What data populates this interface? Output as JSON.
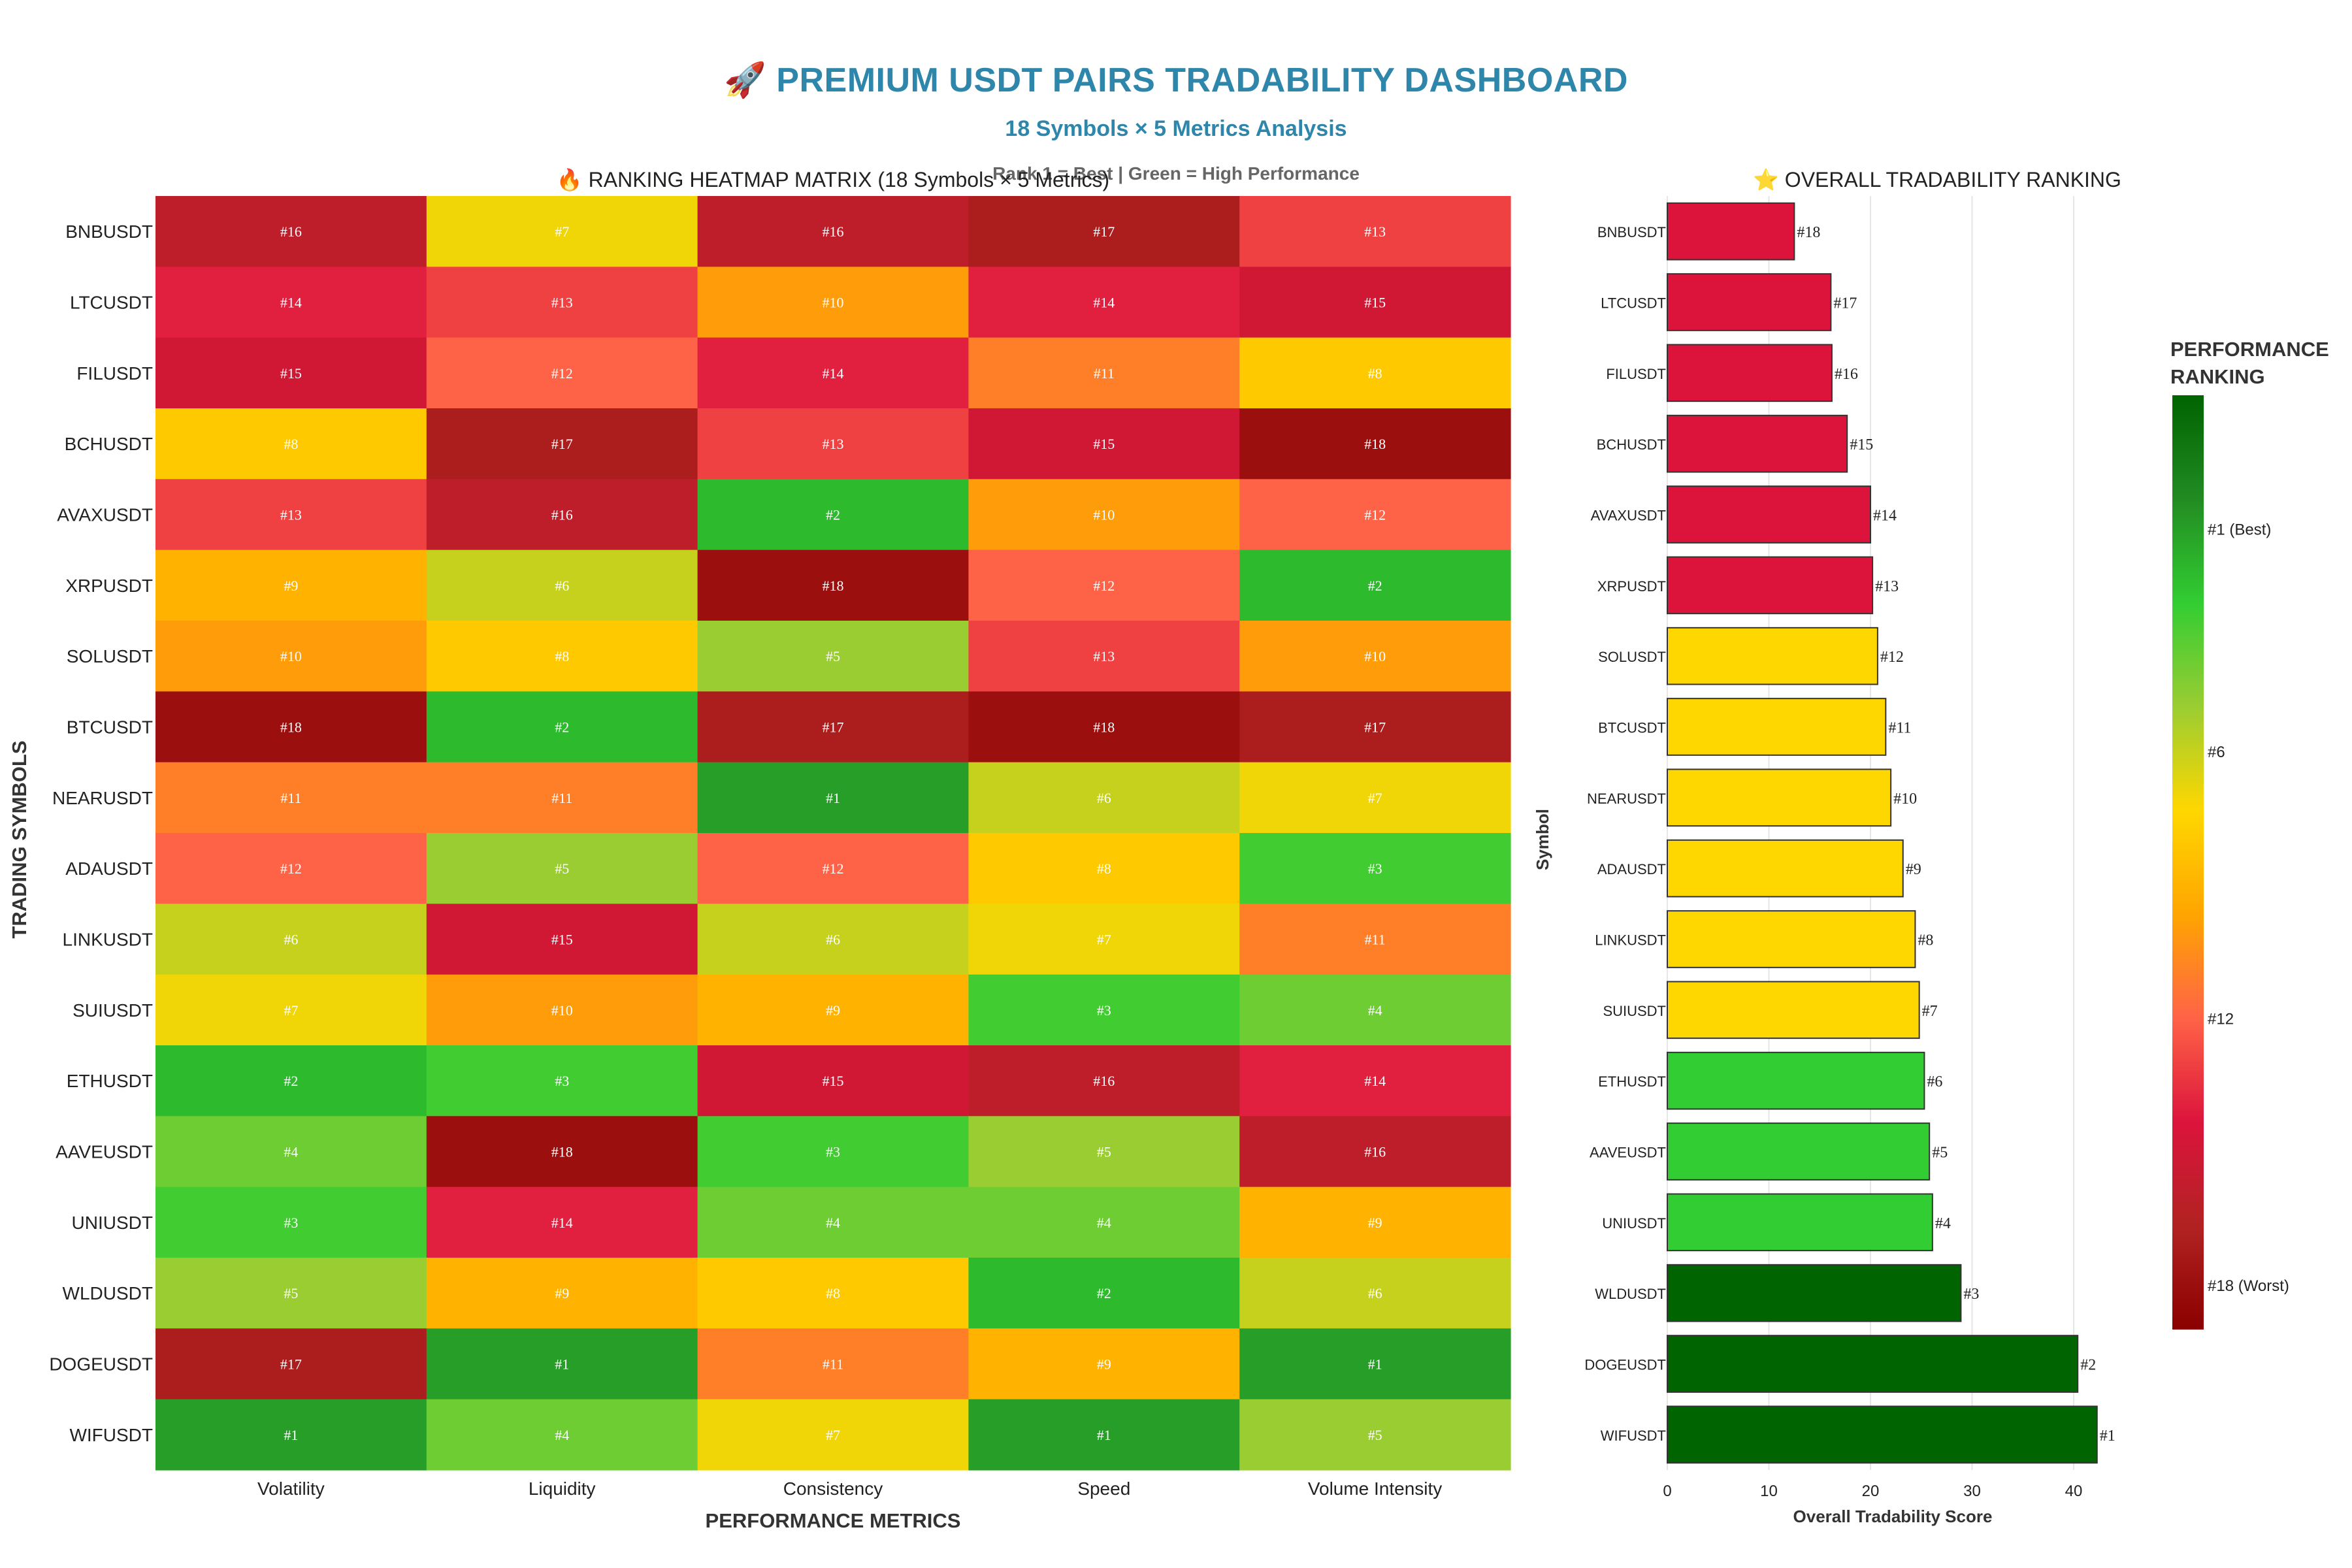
{
  "header": {
    "title": "🚀 PREMIUM USDT PAIRS TRADABILITY DASHBOARD",
    "subtitle": "18 Symbols × 5 Metrics Analysis",
    "note": "Rank 1 = Best | Green = High Performance"
  },
  "colors": {
    "title": "#2e86ab",
    "scale": [
      "#006400",
      "#228B22",
      "#32CD32",
      "#9ACD32",
      "#FFD700",
      "#FFA500",
      "#FF6347",
      "#DC143C",
      "#B22222",
      "#8B0000"
    ],
    "bar_green": "#006400",
    "bar_lightgreen": "#32CD32",
    "bar_yellow": "#FFD700",
    "bar_red": "#DC143C"
  },
  "chart_data": [
    {
      "type": "heatmap",
      "title": "🔥 RANKING HEATMAP MATRIX (18 Symbols × 5 Metrics)",
      "xlabel": "PERFORMANCE METRICS",
      "ylabel": "TRADING SYMBOLS",
      "x": [
        "Volatility",
        "Liquidity",
        "Consistency",
        "Speed",
        "Volume Intensity"
      ],
      "y": [
        "BNBUSDT",
        "LTCUSDT",
        "FILUSDT",
        "BCHUSDT",
        "AVAXUSDT",
        "XRPUSDT",
        "SOLUSDT",
        "BTCUSDT",
        "NEARUSDT",
        "ADAUSDT",
        "LINKUSDT",
        "SUIUSDT",
        "ETHUSDT",
        "AAVEUSDT",
        "UNIUSDT",
        "WLDUSDT",
        "DOGEUSDT",
        "WIFUSDT"
      ],
      "values": [
        [
          16,
          7,
          16,
          17,
          13
        ],
        [
          14,
          13,
          10,
          14,
          15
        ],
        [
          15,
          12,
          14,
          11,
          8
        ],
        [
          8,
          17,
          13,
          15,
          18
        ],
        [
          13,
          16,
          2,
          10,
          12
        ],
        [
          9,
          6,
          18,
          12,
          2
        ],
        [
          10,
          8,
          5,
          13,
          10
        ],
        [
          18,
          2,
          17,
          18,
          17
        ],
        [
          11,
          11,
          1,
          6,
          7
        ],
        [
          12,
          5,
          12,
          8,
          3
        ],
        [
          6,
          15,
          6,
          7,
          11
        ],
        [
          7,
          10,
          9,
          3,
          4
        ],
        [
          2,
          3,
          15,
          16,
          14
        ],
        [
          4,
          18,
          3,
          5,
          16
        ],
        [
          3,
          14,
          4,
          4,
          9
        ],
        [
          5,
          9,
          8,
          2,
          6
        ],
        [
          17,
          1,
          11,
          9,
          1
        ],
        [
          1,
          4,
          7,
          1,
          5
        ]
      ],
      "cell_label_prefix": "#",
      "colorbar": {
        "title_line1": "PERFORMANCE",
        "title_line2": "RANKING",
        "ticks": [
          {
            "value": 1,
            "label": "#1 (Best)"
          },
          {
            "value": 6,
            "label": "#6"
          },
          {
            "value": 12,
            "label": "#12"
          },
          {
            "value": 18,
            "label": "#18 (Worst)"
          }
        ],
        "range": [
          -2,
          19
        ]
      }
    },
    {
      "type": "bar",
      "orientation": "horizontal",
      "title": "⭐ OVERALL TRADABILITY RANKING",
      "xlabel": "Overall Tradability Score",
      "ylabel": "Symbol",
      "categories": [
        "BNBUSDT",
        "LTCUSDT",
        "FILUSDT",
        "BCHUSDT",
        "AVAXUSDT",
        "XRPUSDT",
        "SOLUSDT",
        "BTCUSDT",
        "NEARUSDT",
        "ADAUSDT",
        "LINKUSDT",
        "SUIUSDT",
        "ETHUSDT",
        "AAVEUSDT",
        "UNIUSDT",
        "WLDUSDT",
        "DOGEUSDT",
        "WIFUSDT"
      ],
      "values": [
        12.5,
        16.1,
        16.2,
        17.7,
        20.0,
        20.2,
        20.7,
        21.5,
        22.0,
        23.2,
        24.4,
        24.8,
        25.3,
        25.8,
        26.1,
        28.9,
        40.4,
        42.3
      ],
      "data_labels": [
        "#18",
        "#17",
        "#16",
        "#15",
        "#14",
        "#13",
        "#12",
        "#11",
        "#10",
        "#9",
        "#8",
        "#7",
        "#6",
        "#5",
        "#4",
        "#3",
        "#2",
        "#1"
      ],
      "bar_colors": [
        "bar_red",
        "bar_red",
        "bar_red",
        "bar_red",
        "bar_red",
        "bar_red",
        "bar_yellow",
        "bar_yellow",
        "bar_yellow",
        "bar_yellow",
        "bar_yellow",
        "bar_yellow",
        "bar_lightgreen",
        "bar_lightgreen",
        "bar_lightgreen",
        "bar_green",
        "bar_green",
        "bar_green"
      ],
      "xlim": [
        0,
        45
      ],
      "xticks": [
        0,
        10,
        20,
        30,
        40
      ],
      "grid": true
    }
  ]
}
